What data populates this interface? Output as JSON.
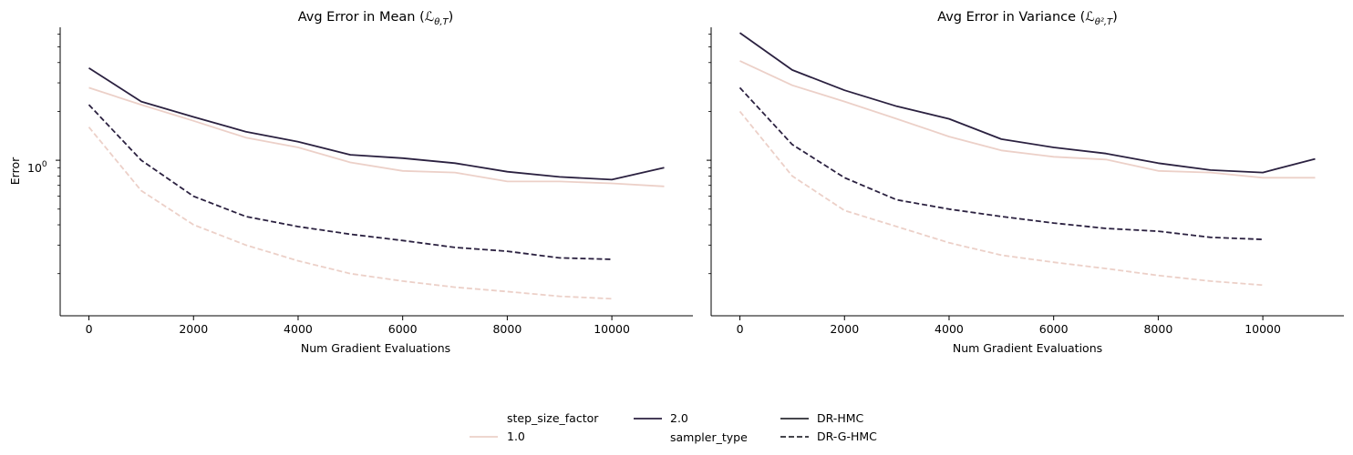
{
  "legend": {
    "hue_title": "step_size_factor",
    "hue_items": [
      {
        "label": "1.0",
        "color": "#ecd0c8"
      },
      {
        "label": "2.0",
        "color": "#2b2140"
      }
    ],
    "style_title": "sampler_type",
    "style_items": [
      {
        "label": "DR-HMC",
        "dash": "solid"
      },
      {
        "label": "DR-G-HMC",
        "dash": "dashed"
      }
    ]
  },
  "chart_data": [
    {
      "type": "line",
      "title": "Avg Error in Mean (ℒθ,T)",
      "title_main": "Avg Error in Mean (",
      "title_math": "ℒ",
      "title_sub": "θ,T",
      "title_close": ")",
      "xlabel": "Num Gradient Evaluations",
      "ylabel": "Error",
      "yscale": "log",
      "xlim": [
        -550,
        11550
      ],
      "ylim": [
        0.11,
        6.6
      ],
      "xticks": [
        0,
        2000,
        4000,
        6000,
        8000,
        10000
      ],
      "xtick_labels": [
        "0",
        "2000",
        "4000",
        "6000",
        "8000",
        "10000"
      ],
      "ytick_label": "10",
      "ytick_label_exp": "0",
      "grid": false,
      "series": [
        {
          "step_size_factor": "1.0",
          "sampler_type": "DR-HMC",
          "x": [
            0,
            1000,
            2000,
            3000,
            4000,
            5000,
            6000,
            7000,
            8000,
            9000,
            10000,
            11000
          ],
          "y": [
            2.8,
            2.2,
            1.75,
            1.38,
            1.2,
            0.97,
            0.86,
            0.84,
            0.74,
            0.74,
            0.72,
            0.69
          ]
        },
        {
          "step_size_factor": "2.0",
          "sampler_type": "DR-HMC",
          "x": [
            0,
            1000,
            2000,
            3000,
            4000,
            5000,
            6000,
            7000,
            8000,
            9000,
            10000,
            11000
          ],
          "y": [
            3.7,
            2.3,
            1.85,
            1.5,
            1.3,
            1.08,
            1.03,
            0.96,
            0.85,
            0.79,
            0.76,
            0.9
          ]
        },
        {
          "step_size_factor": "1.0",
          "sampler_type": "DR-G-HMC",
          "x": [
            0,
            1000,
            2000,
            3000,
            4000,
            5000,
            6000,
            7000,
            8000,
            9000,
            10000
          ],
          "y": [
            1.6,
            0.65,
            0.4,
            0.3,
            0.24,
            0.2,
            0.18,
            0.165,
            0.155,
            0.145,
            0.14
          ]
        },
        {
          "step_size_factor": "2.0",
          "sampler_type": "DR-G-HMC",
          "x": [
            0,
            1000,
            2000,
            3000,
            4000,
            5000,
            6000,
            7000,
            8000,
            9000,
            10000
          ],
          "y": [
            2.2,
            1.0,
            0.6,
            0.45,
            0.39,
            0.35,
            0.32,
            0.29,
            0.275,
            0.25,
            0.245
          ]
        }
      ]
    },
    {
      "type": "line",
      "title": "Avg Error in Variance (ℒθ²,T)",
      "title_main": "Avg Error in Variance (",
      "title_math": "ℒ",
      "title_sub": "θ²,T",
      "title_close": ")",
      "xlabel": "Num Gradient Evaluations",
      "ylabel": "",
      "yscale": "log",
      "xlim": [
        -550,
        11550
      ],
      "ylim": [
        0.11,
        6.6
      ],
      "xticks": [
        0,
        2000,
        4000,
        6000,
        8000,
        10000
      ],
      "xtick_labels": [
        "0",
        "2000",
        "4000",
        "6000",
        "8000",
        "10000"
      ],
      "ytick_label": "",
      "ytick_label_exp": "",
      "grid": false,
      "series": [
        {
          "step_size_factor": "1.0",
          "sampler_type": "DR-HMC",
          "x": [
            0,
            1000,
            2000,
            3000,
            4000,
            5000,
            6000,
            7000,
            8000,
            9000,
            10000,
            11000
          ],
          "y": [
            4.1,
            2.9,
            2.3,
            1.8,
            1.4,
            1.15,
            1.05,
            1.01,
            0.86,
            0.84,
            0.78,
            0.78
          ]
        },
        {
          "step_size_factor": "2.0",
          "sampler_type": "DR-HMC",
          "x": [
            0,
            1000,
            2000,
            3000,
            4000,
            5000,
            6000,
            7000,
            8000,
            9000,
            10000,
            11000
          ],
          "y": [
            6.1,
            3.6,
            2.7,
            2.15,
            1.8,
            1.35,
            1.2,
            1.1,
            0.96,
            0.87,
            0.84,
            1.02
          ]
        },
        {
          "step_size_factor": "1.0",
          "sampler_type": "DR-G-HMC",
          "x": [
            0,
            1000,
            2000,
            3000,
            4000,
            5000,
            6000,
            7000,
            8000,
            9000,
            10000
          ],
          "y": [
            2.0,
            0.8,
            0.49,
            0.39,
            0.31,
            0.26,
            0.235,
            0.215,
            0.195,
            0.18,
            0.17
          ]
        },
        {
          "step_size_factor": "2.0",
          "sampler_type": "DR-G-HMC",
          "x": [
            0,
            1000,
            2000,
            3000,
            4000,
            5000,
            6000,
            7000,
            8000,
            9000,
            10000
          ],
          "y": [
            2.8,
            1.25,
            0.78,
            0.57,
            0.5,
            0.45,
            0.41,
            0.38,
            0.365,
            0.335,
            0.325
          ]
        }
      ]
    }
  ]
}
